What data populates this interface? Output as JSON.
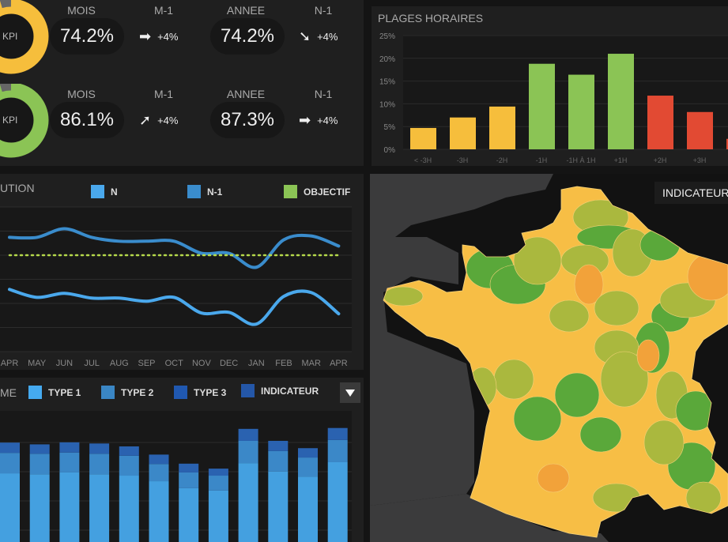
{
  "kpis": [
    {
      "ring_label": "KPI",
      "ring_color": "#f6be3c",
      "mois_label": "MOIS",
      "mois_value": "74.2%",
      "m1_label": "M-1",
      "m1_arrow": "arrow-right",
      "m1_delta": "+4%",
      "annee_label": "ANNEE",
      "annee_value": "74.2%",
      "n1_label": "N-1",
      "n1_arrow": "arrow-down-right",
      "n1_delta": "+4%"
    },
    {
      "ring_label": "KPI",
      "ring_color": "#8bc455",
      "mois_label": "MOIS",
      "mois_value": "86.1%",
      "m1_label": "M-1",
      "m1_arrow": "arrow-up-right",
      "m1_delta": "+4%",
      "annee_label": "ANNEE",
      "annee_value": "87.3%",
      "n1_label": "N-1",
      "n1_arrow": "arrow-right",
      "n1_delta": "+4%"
    }
  ],
  "plages": {
    "title": "PLAGES HORAIRES"
  },
  "evolution": {
    "title": "UTION",
    "legend": [
      {
        "label": "N",
        "color": "#4aa8ec"
      },
      {
        "label": "N-1",
        "color": "#3a8ccc"
      },
      {
        "label": "OBJECTIF",
        "color": "#8bc455"
      }
    ]
  },
  "volume": {
    "title": "ME",
    "legend": [
      {
        "label": "TYPE 1",
        "color": "#45aaf0"
      },
      {
        "label": "TYPE 2",
        "color": "#3a86c4"
      },
      {
        "label": "TYPE 3",
        "color": "#2058b0"
      },
      {
        "label": "INDICATEUR",
        "color": "#2457a8"
      }
    ],
    "dropdown_icon": "caret-down"
  },
  "map": {
    "label": "INDICATEUR",
    "colors": {
      "yellow": "#f7be45",
      "orange": "#f2a23a",
      "lime": "#aab83e",
      "green": "#5aa83a"
    }
  },
  "chart_data": [
    {
      "type": "bar",
      "title": "PLAGES HORAIRES",
      "categories": [
        "< -3H",
        "-3H",
        "-2H",
        "-1H",
        "-1H À 1H",
        "+1H",
        "+2H",
        "+3H",
        ""
      ],
      "values": [
        4.7,
        7,
        9.4,
        18.8,
        16.4,
        21,
        11.8,
        8.2,
        2.3
      ],
      "colors": [
        "#f6be3c",
        "#f6be3c",
        "#f6be3c",
        "#8bc455",
        "#8bc455",
        "#8bc455",
        "#e24a33",
        "#e24a33",
        "#e24a33"
      ],
      "yticks": [
        "0%",
        "5%",
        "10%",
        "15%",
        "20%",
        "25%"
      ],
      "ylim": [
        0,
        25
      ],
      "grid": true
    },
    {
      "type": "line",
      "categories": [
        "APR",
        "MAY",
        "JUN",
        "JUL",
        "AUG",
        "SEP",
        "OCT",
        "NOV",
        "DEC",
        "JAN",
        "FEB",
        "MAR",
        "APR"
      ],
      "series": [
        {
          "name": "N-1",
          "values": [
            4.74,
            4.74,
            5.1,
            4.74,
            4.58,
            4.58,
            4.58,
            4.08,
            4.08,
            3.5,
            4.64,
            4.8,
            4.38
          ]
        },
        {
          "name": "N",
          "values": [
            2.58,
            2.25,
            2.42,
            2.22,
            2.22,
            2.09,
            2.25,
            1.6,
            1.63,
            1.14,
            2.29,
            2.45,
            1.57
          ]
        },
        {
          "name": "OBJECTIF",
          "values": [
            4,
            4,
            4,
            4,
            4,
            4,
            4,
            4,
            4,
            4,
            4,
            4,
            4
          ]
        }
      ],
      "ylim": [
        0,
        6
      ],
      "grid": true,
      "legend": "top"
    },
    {
      "type": "bar",
      "stacked": true,
      "series": [
        {
          "name": "TYPE 1",
          "values": [
            2.35,
            2.32,
            2.38,
            2.32,
            2.27,
            2.08,
            1.84,
            1.76,
            2.7,
            2.41,
            2.24,
            2.73
          ]
        },
        {
          "name": "TYPE 2",
          "values": [
            0.7,
            0.7,
            0.68,
            0.7,
            0.68,
            0.59,
            0.54,
            0.51,
            0.76,
            0.7,
            0.65,
            0.76
          ]
        },
        {
          "name": "TYPE 3",
          "values": [
            0.35,
            0.32,
            0.35,
            0.35,
            0.32,
            0.32,
            0.3,
            0.24,
            0.41,
            0.35,
            0.32,
            0.41
          ]
        }
      ],
      "grid": true,
      "legend": "top"
    }
  ]
}
